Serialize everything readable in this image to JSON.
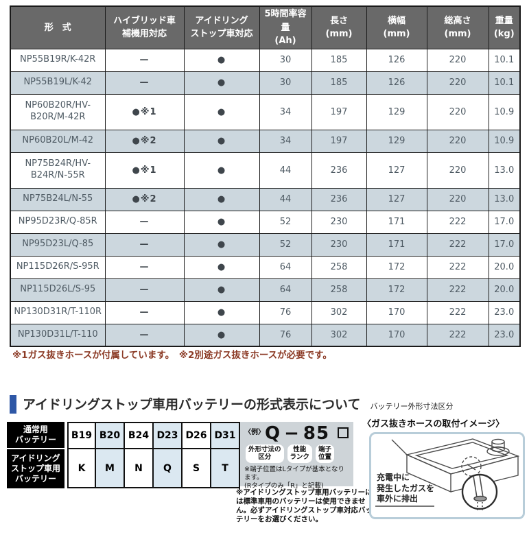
{
  "spec_table": {
    "headers": [
      "形　式",
      "ハイブリッド車\n補機用対応",
      "アイドリング\nストップ車対応",
      "5時間率容量\n(Ah)",
      "長さ\n(mm)",
      "横幅\n(mm)",
      "総高さ\n(mm)",
      "重量\n(kg)"
    ],
    "rows": [
      {
        "model": "NP55B19R/K-42R",
        "hybrid": "—",
        "idling": "●",
        "capacity": "30",
        "length": "185",
        "width": "126",
        "height": "220",
        "weight": "10.1"
      },
      {
        "model": "NP55B19L/K-42",
        "hybrid": "—",
        "idling": "●",
        "capacity": "30",
        "length": "185",
        "width": "126",
        "height": "220",
        "weight": "10.1"
      },
      {
        "model": "NP60B20R/HV-\nB20R/M-42R",
        "hybrid": "●※1",
        "idling": "●",
        "capacity": "34",
        "length": "197",
        "width": "129",
        "height": "220",
        "weight": "10.9"
      },
      {
        "model": "NP60B20L/M-42",
        "hybrid": "●※2",
        "idling": "●",
        "capacity": "34",
        "length": "197",
        "width": "129",
        "height": "220",
        "weight": "10.9"
      },
      {
        "model": "NP75B24R/HV-\nB24R/N-55R",
        "hybrid": "●※1",
        "idling": "●",
        "capacity": "44",
        "length": "236",
        "width": "127",
        "height": "220",
        "weight": "13.0"
      },
      {
        "model": "NP75B24L/N-55",
        "hybrid": "●※2",
        "idling": "●",
        "capacity": "44",
        "length": "236",
        "width": "127",
        "height": "220",
        "weight": "13.0"
      },
      {
        "model": "NP95D23R/Q-85R",
        "hybrid": "—",
        "idling": "●",
        "capacity": "52",
        "length": "230",
        "width": "171",
        "height": "222",
        "weight": "17.0"
      },
      {
        "model": "NP95D23L/Q-85",
        "hybrid": "—",
        "idling": "●",
        "capacity": "52",
        "length": "230",
        "width": "171",
        "height": "222",
        "weight": "17.0"
      },
      {
        "model": "NP115D26R/S-95R",
        "hybrid": "—",
        "idling": "●",
        "capacity": "64",
        "length": "258",
        "width": "172",
        "height": "222",
        "weight": "20.0"
      },
      {
        "model": "NP115D26L/S-95",
        "hybrid": "—",
        "idling": "●",
        "capacity": "64",
        "length": "258",
        "width": "172",
        "height": "222",
        "weight": "20.0"
      },
      {
        "model": "NP130D31R/T-110R",
        "hybrid": "—",
        "idling": "●",
        "capacity": "76",
        "length": "302",
        "width": "170",
        "height": "222",
        "weight": "23.0"
      },
      {
        "model": "NP130D31L/T-110",
        "hybrid": "—",
        "idling": "●",
        "capacity": "76",
        "length": "302",
        "width": "170",
        "height": "222",
        "weight": "23.0"
      }
    ]
  },
  "footnote": "※1ガス抜きホースが付属しています。　※2別途ガス抜きホースが必要です。",
  "section": {
    "title": "アイドリングストップ車用バッテリーの形式表示について",
    "subtitle": "バッテリー外形寸法区分"
  },
  "code_table": {
    "rows": [
      {
        "label": "通常用\nバッテリー",
        "cells": [
          "B19",
          "B20",
          "B24",
          "D23",
          "D26",
          "D31"
        ]
      },
      {
        "label": "アイドリング\nストップ車用\nバッテリー",
        "cells": [
          "K",
          "M",
          "N",
          "Q",
          "S",
          "T"
        ]
      }
    ]
  },
  "example": {
    "prefix": "〈例〉",
    "code_class": "Q",
    "dash": "−",
    "code_rank": "85",
    "labels": [
      "外形寸法の\n区分",
      "性能\nランク",
      "端子\n位置"
    ],
    "note": "※端子位置はLタイプが基本となります。\n(Rタイプのみ「R」と記載)"
  },
  "warning": "※アイドリングストップ車用バッテリーには標準車用のバッテリーは使用できません。必ずアイドリングストップ車対応バッテリーをお選びください。",
  "hose": {
    "title": "〈ガス抜きホースの取付イメージ〉",
    "caption": "充電中に\n発生したガスを\n車外に排出"
  },
  "colors": {
    "header_bg": "#696969",
    "row_alt_bg": "#ccd7de",
    "table_border": "#1a1a1a",
    "footnote_text": "#8c3b26",
    "accent_blue_bar": "#2e57a6",
    "code_cell_blue": "#dbe8f1",
    "example_box_bg": "#ced4d8",
    "hose_box_border": "#b8cdd9"
  }
}
